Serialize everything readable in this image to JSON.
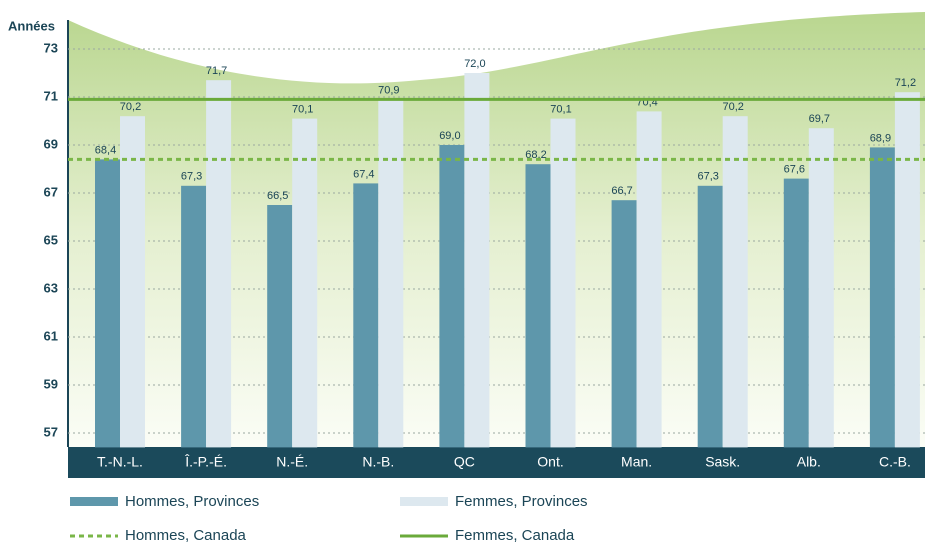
{
  "chart_data": {
    "type": "bar",
    "y_label": "Années",
    "categories": [
      "T.-N.-L.",
      "Î.-P.-É.",
      "N.-É.",
      "N.-B.",
      "QC",
      "Ont.",
      "Man.",
      "Sask.",
      "Alb.",
      "C.-B."
    ],
    "series": [
      {
        "name": "Hommes, Provinces",
        "color": "#5e97ab",
        "values": [
          68.4,
          67.3,
          66.5,
          67.4,
          69.0,
          68.2,
          66.7,
          67.3,
          67.6,
          68.9
        ],
        "value_labels": [
          "68,4",
          "67,3",
          "66,5",
          "67,4",
          "69,0",
          "68,2",
          "66,7",
          "67,3",
          "67,6",
          "68,9"
        ]
      },
      {
        "name": "Femmes, Provinces",
        "color": "#dde8ef",
        "values": [
          70.2,
          71.7,
          70.1,
          70.9,
          72.0,
          70.1,
          70.4,
          70.2,
          69.7,
          71.2
        ],
        "value_labels": [
          "70,2",
          "71,7",
          "70,1",
          "70,9",
          "72,0",
          "70,1",
          "70,4",
          "70,2",
          "69,7",
          "71,2"
        ]
      }
    ],
    "reference_lines": [
      {
        "name": "Hommes, Canada",
        "value": 68.4,
        "color": "#7ab648",
        "style": "dashed"
      },
      {
        "name": "Femmes, Canada",
        "value": 70.9,
        "color": "#6aaa3a",
        "style": "solid"
      }
    ],
    "ylim": [
      56.4,
      75
    ],
    "yticks": [
      57,
      59,
      61,
      63,
      65,
      67,
      69,
      71,
      73
    ],
    "grid": true
  }
}
